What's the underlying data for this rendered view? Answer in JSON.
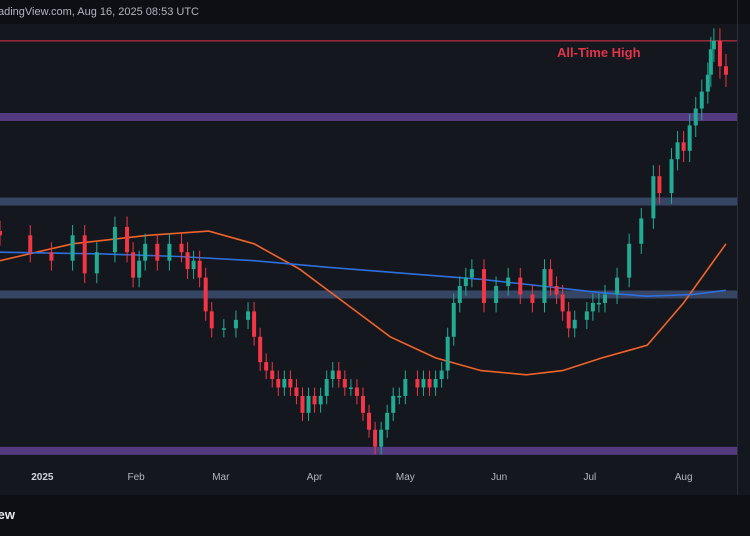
{
  "header": {
    "source_text": "adingView.com, Aug 16, 2025 08:53 UTC"
  },
  "footer": {
    "brand_text": "iew"
  },
  "colors": {
    "background": "#15171f",
    "candle_up": "#22ab94",
    "candle_down": "#f23645",
    "ma_fast": "#f0632a",
    "ma_slow": "#2f6fdc",
    "band_purple": "#5b3f8a",
    "band_blue": "#3a4a6b",
    "ath_line": "#e0344a",
    "annotation": "#e0344a"
  },
  "chart_data": {
    "type": "candlestick",
    "title": "",
    "xlabel": "",
    "ylabel": "",
    "grid": false,
    "legend": "none",
    "x_ticks": [
      "2025",
      "Feb",
      "Mar",
      "Apr",
      "May",
      "Jun",
      "Jul",
      "Aug"
    ],
    "annotations": [
      {
        "text": "All-Time High",
        "type": "horizontal-line"
      }
    ],
    "levels": [
      {
        "name": "all-time-high",
        "value": 124000,
        "style": "thin-red-line"
      },
      {
        "name": "resistance-purple",
        "value": 115000,
        "style": "purple-band"
      },
      {
        "name": "support-blue-upper",
        "value": 105000,
        "style": "blue-band"
      },
      {
        "name": "support-blue-lower",
        "value": 94000,
        "style": "blue-band"
      },
      {
        "name": "support-purple-lower",
        "value": 75500,
        "style": "purple-band"
      }
    ],
    "y_range": [
      73000,
      126000
    ],
    "x_range_days": [
      -14,
      227
    ],
    "candles_close": [
      [
        -14,
        101000
      ],
      [
        -4,
        99000
      ],
      [
        3,
        98000
      ],
      [
        10,
        101000
      ],
      [
        14,
        96500
      ],
      [
        18,
        99000
      ],
      [
        24,
        102000
      ],
      [
        28,
        99000
      ],
      [
        30,
        96000
      ],
      [
        32,
        98000
      ],
      [
        34,
        100000
      ],
      [
        38,
        98000
      ],
      [
        42,
        100000
      ],
      [
        46,
        99000
      ],
      [
        48,
        97000
      ],
      [
        50,
        98000
      ],
      [
        52,
        96000
      ],
      [
        54,
        92000
      ],
      [
        56,
        90000
      ],
      [
        60,
        90000
      ],
      [
        64,
        91000
      ],
      [
        68,
        92000
      ],
      [
        70,
        89000
      ],
      [
        72,
        86000
      ],
      [
        74,
        85000
      ],
      [
        76,
        84000
      ],
      [
        78,
        83000
      ],
      [
        80,
        84000
      ],
      [
        82,
        83000
      ],
      [
        84,
        82000
      ],
      [
        86,
        80000
      ],
      [
        88,
        82000
      ],
      [
        90,
        81000
      ],
      [
        92,
        82000
      ],
      [
        94,
        84000
      ],
      [
        96,
        85000
      ],
      [
        98,
        84000
      ],
      [
        100,
        83000
      ],
      [
        102,
        83000
      ],
      [
        104,
        82000
      ],
      [
        106,
        80000
      ],
      [
        108,
        78000
      ],
      [
        110,
        76000
      ],
      [
        112,
        78000
      ],
      [
        114,
        80000
      ],
      [
        116,
        82000
      ],
      [
        118,
        82000
      ],
      [
        120,
        84000
      ],
      [
        124,
        83000
      ],
      [
        126,
        84000
      ],
      [
        128,
        83000
      ],
      [
        130,
        84000
      ],
      [
        132,
        85000
      ],
      [
        134,
        89000
      ],
      [
        136,
        93000
      ],
      [
        138,
        95000
      ],
      [
        140,
        96000
      ],
      [
        142,
        97000
      ],
      [
        146,
        93000
      ],
      [
        150,
        95000
      ],
      [
        154,
        96000
      ],
      [
        158,
        94000
      ],
      [
        162,
        93000
      ],
      [
        166,
        97000
      ],
      [
        168,
        95000
      ],
      [
        170,
        94000
      ],
      [
        172,
        92000
      ],
      [
        174,
        90000
      ],
      [
        176,
        91000
      ],
      [
        180,
        92000
      ],
      [
        182,
        93000
      ],
      [
        184,
        93000
      ],
      [
        186,
        94000
      ],
      [
        190,
        96000
      ],
      [
        194,
        100000
      ],
      [
        198,
        103000
      ],
      [
        202,
        108000
      ],
      [
        204,
        106000
      ],
      [
        208,
        110000
      ],
      [
        210,
        112000
      ],
      [
        212,
        111000
      ],
      [
        214,
        114000
      ],
      [
        216,
        116000
      ],
      [
        218,
        118000
      ],
      [
        220,
        120000
      ],
      [
        221,
        123000
      ],
      [
        222,
        124000
      ],
      [
        224,
        121000
      ],
      [
        226,
        120000
      ]
    ],
    "series": [
      {
        "name": "",
        "type": "line",
        "color": "#f0632a",
        "points": [
          [
            -14,
            98000
          ],
          [
            10,
            100000
          ],
          [
            35,
            101000
          ],
          [
            55,
            101500
          ],
          [
            70,
            100000
          ],
          [
            85,
            97000
          ],
          [
            100,
            93000
          ],
          [
            115,
            89000
          ],
          [
            130,
            86500
          ],
          [
            145,
            85000
          ],
          [
            160,
            84500
          ],
          [
            172,
            85000
          ],
          [
            185,
            86500
          ],
          [
            200,
            88000
          ],
          [
            212,
            93000
          ],
          [
            220,
            97000
          ],
          [
            226,
            100000
          ]
        ]
      },
      {
        "name": "",
        "type": "line",
        "color": "#2f6fdc",
        "points": [
          [
            -14,
            99000
          ],
          [
            20,
            98800
          ],
          [
            45,
            98500
          ],
          [
            70,
            98000
          ],
          [
            95,
            97200
          ],
          [
            120,
            96500
          ],
          [
            145,
            95800
          ],
          [
            165,
            95000
          ],
          [
            185,
            94200
          ],
          [
            200,
            93800
          ],
          [
            215,
            94000
          ],
          [
            226,
            94500
          ]
        ]
      }
    ]
  }
}
